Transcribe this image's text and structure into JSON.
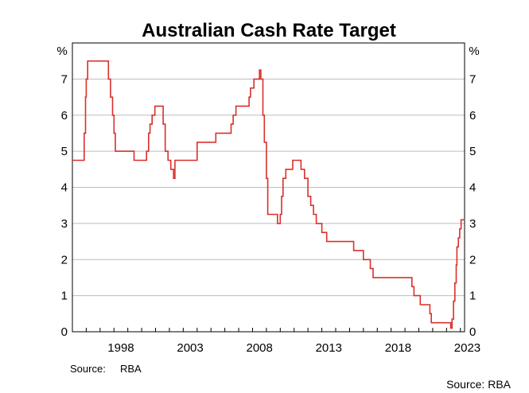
{
  "chart_data": {
    "type": "line",
    "title": "Australian Cash Rate Target",
    "ylabel": "%",
    "ylabel_right": "%",
    "xlabel": "",
    "xlim": [
      1995.0,
      2023.3
    ],
    "ylim": [
      0,
      8
    ],
    "yticks": [
      0,
      1,
      2,
      3,
      4,
      5,
      6,
      7
    ],
    "xticks": [
      1998,
      2003,
      2008,
      2013,
      2018,
      2023
    ],
    "grid": "horizontal",
    "line_color": "#d9302c",
    "step": true,
    "source_label": "Source:",
    "source_name": "RBA",
    "series": [
      {
        "x": [
          1995.0,
          1995.75,
          1995.85,
          1995.95,
          1996.0,
          1996.1,
          1997.5,
          1997.6,
          1997.75,
          1997.9,
          1998.0,
          1998.1,
          1999.3,
          1999.45,
          2000.2,
          2000.35,
          2000.5,
          2000.6,
          2000.75,
          2000.95,
          2001.4,
          2001.55,
          2001.7,
          2001.8,
          2001.9,
          2002.1,
          2002.3,
          2002.4,
          2003.9,
          2004.0,
          2005.2,
          2005.35,
          2006.3,
          2006.45,
          2006.6,
          2006.8,
          2007.6,
          2007.75,
          2007.85,
          2008.1,
          2008.5,
          2008.6,
          2008.75,
          2008.85,
          2009.0,
          2009.1,
          2009.8,
          2009.9,
          2010.0,
          2010.1,
          2010.2,
          2010.4,
          2010.9,
          2011.3,
          2011.5,
          2011.75,
          2011.9,
          2012.0,
          2012.2,
          2012.4,
          2012.6,
          2012.8,
          2013.0,
          2013.35,
          2013.6,
          2014.0,
          2015.1,
          2015.3,
          2015.6,
          2016.0,
          2016.2,
          2016.5,
          2016.7,
          2019.4,
          2019.5,
          2019.65,
          2019.8,
          2020.1,
          2020.2,
          2020.8,
          2020.9,
          2022.3,
          2022.4,
          2022.5,
          2022.6,
          2022.7,
          2022.75,
          2022.85,
          2022.95,
          2023.05,
          2023.15,
          2023.25
        ],
        "y": [
          4.75,
          4.75,
          5.5,
          6.5,
          7.0,
          7.5,
          7.5,
          7.0,
          6.5,
          6.0,
          5.5,
          5.0,
          5.0,
          4.75,
          4.75,
          5.0,
          5.5,
          5.75,
          6.0,
          6.25,
          6.25,
          5.75,
          5.0,
          5.0,
          4.75,
          4.5,
          4.25,
          4.75,
          4.75,
          5.25,
          5.25,
          5.5,
          5.5,
          5.75,
          6.0,
          6.25,
          6.25,
          6.5,
          6.75,
          7.0,
          7.25,
          7.0,
          6.0,
          5.25,
          4.25,
          3.25,
          3.0,
          3.0,
          3.25,
          3.75,
          4.25,
          4.5,
          4.75,
          4.75,
          4.5,
          4.25,
          4.25,
          3.75,
          3.5,
          3.25,
          3.0,
          3.0,
          2.75,
          2.5,
          2.5,
          2.5,
          2.5,
          2.25,
          2.25,
          2.0,
          2.0,
          1.75,
          1.5,
          1.5,
          1.25,
          1.0,
          1.0,
          0.75,
          0.75,
          0.5,
          0.25,
          0.1,
          0.35,
          0.85,
          1.35,
          1.85,
          2.35,
          2.6,
          2.85,
          3.1,
          3.1,
          3.1
        ]
      }
    ]
  }
}
